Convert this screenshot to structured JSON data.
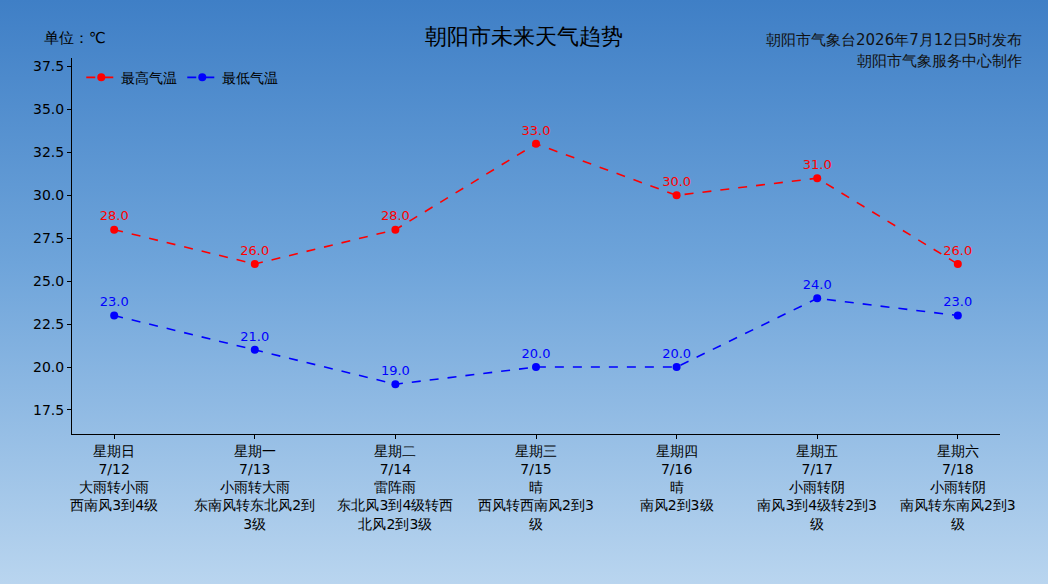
{
  "chart_data": {
    "type": "line",
    "title": "朝阳市未来天气趋势",
    "ylabel": "单位：℃",
    "source": [
      "朝阳市气象台2026年7月12日5时发布",
      "朝阳市气象服务中心制作"
    ],
    "categories": [
      "星期日",
      "星期一",
      "星期二",
      "星期三",
      "星期四",
      "星期五",
      "星期六"
    ],
    "dates": [
      "7/12",
      "7/13",
      "7/14",
      "7/15",
      "7/16",
      "7/17",
      "7/18"
    ],
    "weather": [
      "大雨转小雨",
      "小雨转大雨",
      "雷阵雨",
      "晴",
      "晴",
      "小雨转阴",
      "小雨转阴"
    ],
    "wind": [
      "西南风3到4级",
      "东南风转东北风2到3级",
      "东北风3到4级转西北风2到3级",
      "西风转西南风2到3级",
      "南风2到3级",
      "南风3到4级转2到3级",
      "南风转东南风2到3级"
    ],
    "series": [
      {
        "name": "最高气温",
        "color": "#ff0000",
        "values": [
          28,
          26,
          28,
          33,
          30,
          31,
          26
        ],
        "value_labels": [
          "28.0",
          "26.0",
          "28.0",
          "33.0",
          "30.0",
          "31.0",
          "26.0"
        ],
        "line_style": "dashed",
        "marker": "circle"
      },
      {
        "name": "最低气温",
        "color": "#0000ff",
        "values": [
          23,
          21,
          19,
          20,
          20,
          24,
          23
        ],
        "value_labels": [
          "23.0",
          "21.0",
          "19.0",
          "20.0",
          "20.0",
          "24.0",
          "23.0"
        ],
        "line_style": "dashed",
        "marker": "circle"
      }
    ],
    "ylim": [
      16.1,
      38.0
    ],
    "yticks": [
      17.5,
      {
        "value": 20,
        "label": "20.0"
      },
      22.5,
      {
        "value": 25,
        "label": "25.0"
      },
      27.5,
      {
        "value": 30,
        "label": "30.0"
      },
      32.5,
      {
        "value": 35,
        "label": "35.0"
      },
      37.5
    ],
    "data_labels": true,
    "legend": "upper left",
    "grid": false
  }
}
